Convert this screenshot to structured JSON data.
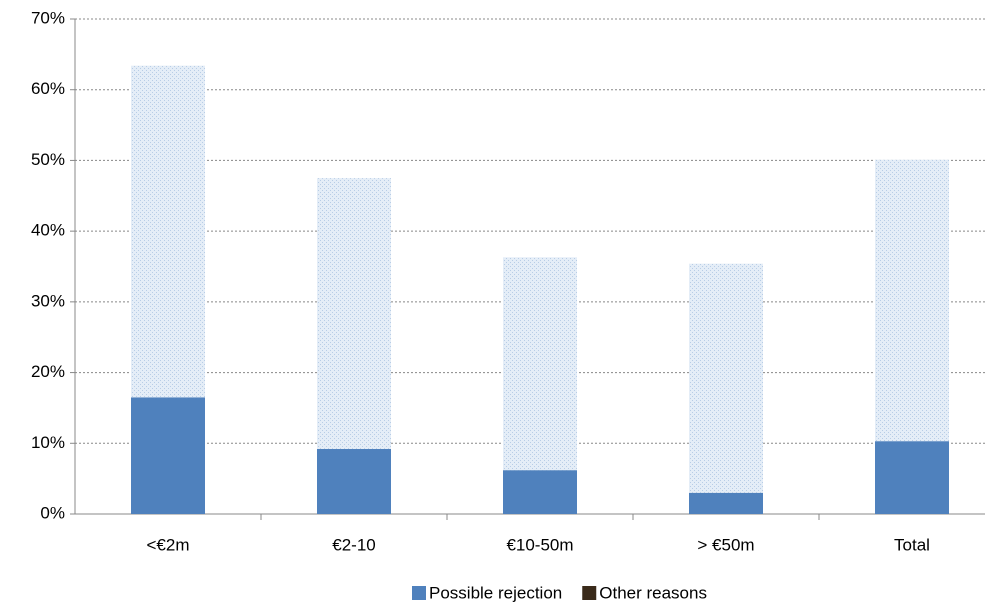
{
  "chart_data": {
    "type": "stacked_bar",
    "categories": [
      "<€2m",
      "€2-10",
      "€10-50m",
      "> €50m",
      "Total"
    ],
    "series": [
      {
        "name": "Possible rejection",
        "color": "#4f81bd",
        "values": [
          16.5,
          9.2,
          6.2,
          3.0,
          10.3
        ]
      },
      {
        "name": "Other reasons",
        "color": "#dbe6f3",
        "values": [
          46.9,
          38.3,
          30.1,
          32.4,
          39.8
        ]
      }
    ],
    "ylim": [
      0,
      70
    ],
    "yticks": [
      {
        "value": 0,
        "label": "0%"
      },
      {
        "value": 10,
        "label": "10%"
      },
      {
        "value": 20,
        "label": "20%"
      },
      {
        "value": 30,
        "label": "30%"
      },
      {
        "value": 40,
        "label": "40%"
      },
      {
        "value": 50,
        "label": "50%"
      },
      {
        "value": 60,
        "label": "60%"
      },
      {
        "value": 70,
        "label": "70%"
      }
    ],
    "grid": true,
    "legend": "bottom"
  }
}
